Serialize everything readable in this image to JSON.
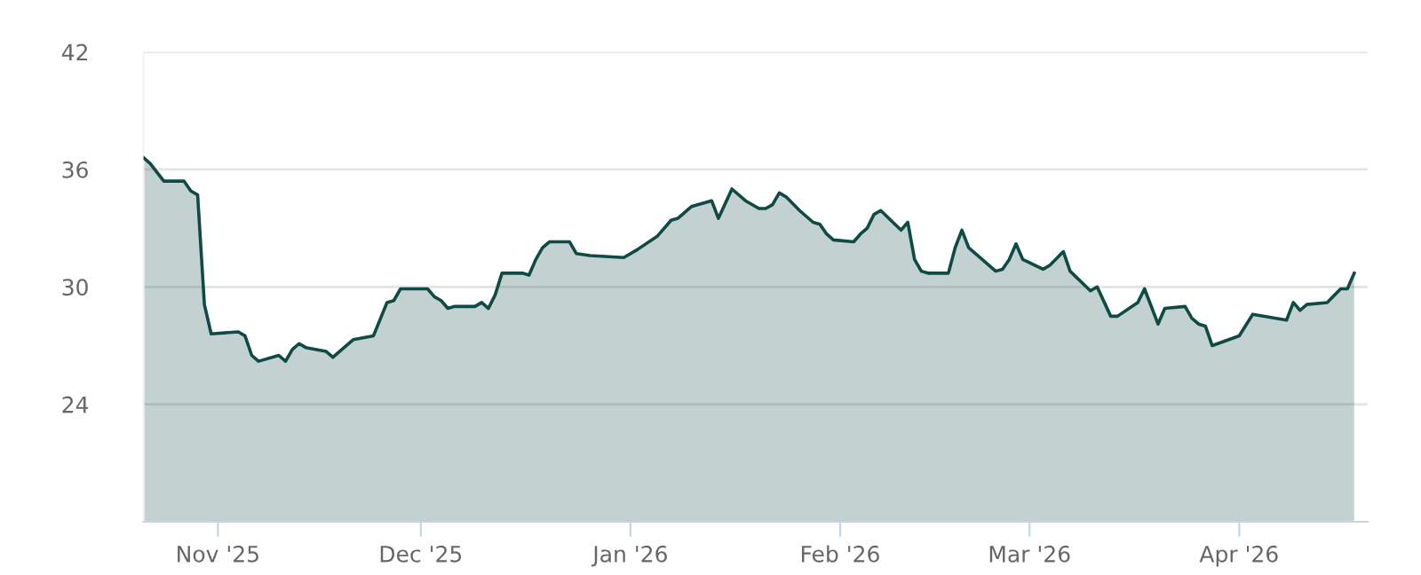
{
  "chart_data": {
    "type": "area",
    "x": [
      "2025-10-21",
      "2025-10-22",
      "2025-10-24",
      "2025-10-27",
      "2025-10-28",
      "2025-10-29",
      "2025-10-30",
      "2025-10-31",
      "2025-11-04",
      "2025-11-05",
      "2025-11-06",
      "2025-11-07",
      "2025-11-10",
      "2025-11-11",
      "2025-11-12",
      "2025-11-13",
      "2025-11-14",
      "2025-11-17",
      "2025-11-18",
      "2025-11-20",
      "2025-11-21",
      "2025-11-24",
      "2025-11-26",
      "2025-11-27",
      "2025-11-28",
      "2025-12-02",
      "2025-12-03",
      "2025-12-04",
      "2025-12-05",
      "2025-12-06",
      "2025-12-09",
      "2025-12-10",
      "2025-12-11",
      "2025-12-12",
      "2025-12-13",
      "2025-12-16",
      "2025-12-17",
      "2025-12-18",
      "2025-12-19",
      "2025-12-20",
      "2025-12-23",
      "2025-12-24",
      "2025-12-26",
      "2025-12-31",
      "2026-01-02",
      "2026-01-05",
      "2026-01-07",
      "2026-01-08",
      "2026-01-10",
      "2026-01-13",
      "2026-01-14",
      "2026-01-16",
      "2026-01-18",
      "2026-01-20",
      "2026-01-21",
      "2026-01-22",
      "2026-01-23",
      "2026-01-24",
      "2026-01-26",
      "2026-01-28",
      "2026-01-29",
      "2026-01-30",
      "2026-01-31",
      "2026-02-03",
      "2026-02-04",
      "2026-02-05",
      "2026-02-06",
      "2026-02-07",
      "2026-02-10",
      "2026-02-11",
      "2026-02-12",
      "2026-02-13",
      "2026-02-14",
      "2026-02-17",
      "2026-02-18",
      "2026-02-19",
      "2026-02-20",
      "2026-02-24",
      "2026-02-25",
      "2026-02-26",
      "2026-02-27",
      "2026-02-28",
      "2026-03-03",
      "2026-03-04",
      "2026-03-06",
      "2026-03-07",
      "2026-03-10",
      "2026-03-11",
      "2026-03-13",
      "2026-03-14",
      "2026-03-17",
      "2026-03-18",
      "2026-03-20",
      "2026-03-21",
      "2026-03-24",
      "2026-03-25",
      "2026-03-26",
      "2026-03-27",
      "2026-03-28",
      "2026-04-01",
      "2026-04-03",
      "2026-04-08",
      "2026-04-09",
      "2026-04-10",
      "2026-04-11",
      "2026-04-14",
      "2026-04-16",
      "2026-04-17",
      "2026-04-18"
    ],
    "series": [
      {
        "color": "#0f4a44",
        "values": [
          36.6,
          36.3,
          35.4,
          35.4,
          34.9,
          34.7,
          29.1,
          27.6,
          27.7,
          27.5,
          26.5,
          26.2,
          26.5,
          26.2,
          26.8,
          27.1,
          26.9,
          26.7,
          26.4,
          27.0,
          27.3,
          27.5,
          29.2,
          29.3,
          29.9,
          29.9,
          29.5,
          29.3,
          28.9,
          29.0,
          29.0,
          29.2,
          28.9,
          29.6,
          30.7,
          30.7,
          30.6,
          31.4,
          32.0,
          32.3,
          32.3,
          31.7,
          31.6,
          31.5,
          31.9,
          32.6,
          33.4,
          33.5,
          34.1,
          34.4,
          33.5,
          35.0,
          34.4,
          34.0,
          34.0,
          34.2,
          34.8,
          34.6,
          33.9,
          33.3,
          33.2,
          32.7,
          32.4,
          32.3,
          32.7,
          33.0,
          33.7,
          33.9,
          32.9,
          33.3,
          31.4,
          30.8,
          30.7,
          30.7,
          32.0,
          32.9,
          32.0,
          30.8,
          30.9,
          31.4,
          32.2,
          31.4,
          30.9,
          31.1,
          31.8,
          30.8,
          29.8,
          30.0,
          28.5,
          28.5,
          29.2,
          29.9,
          28.1,
          28.9,
          29.0,
          28.4,
          28.1,
          28.0,
          27.0,
          27.5,
          28.6,
          28.3,
          29.2,
          28.8,
          29.1,
          29.2,
          29.9,
          29.9,
          30.7
        ]
      }
    ],
    "xlim": [
      "2025-10-21",
      "2026-04-20"
    ],
    "xticks": [
      {
        "value": "2025-11-01",
        "label": "Nov '25"
      },
      {
        "value": "2025-12-01",
        "label": "Dec '25"
      },
      {
        "value": "2026-01-01",
        "label": "Jan '26"
      },
      {
        "value": "2026-02-01",
        "label": "Feb '26"
      },
      {
        "value": "2026-03-01",
        "label": "Mar '26"
      },
      {
        "value": "2026-04-01",
        "label": "Apr '26"
      }
    ],
    "ylim": [
      18,
      42
    ],
    "yticks": [
      24,
      30,
      36,
      42
    ],
    "grid": "y",
    "legend": false,
    "marker": "none",
    "line_style": "solid"
  }
}
